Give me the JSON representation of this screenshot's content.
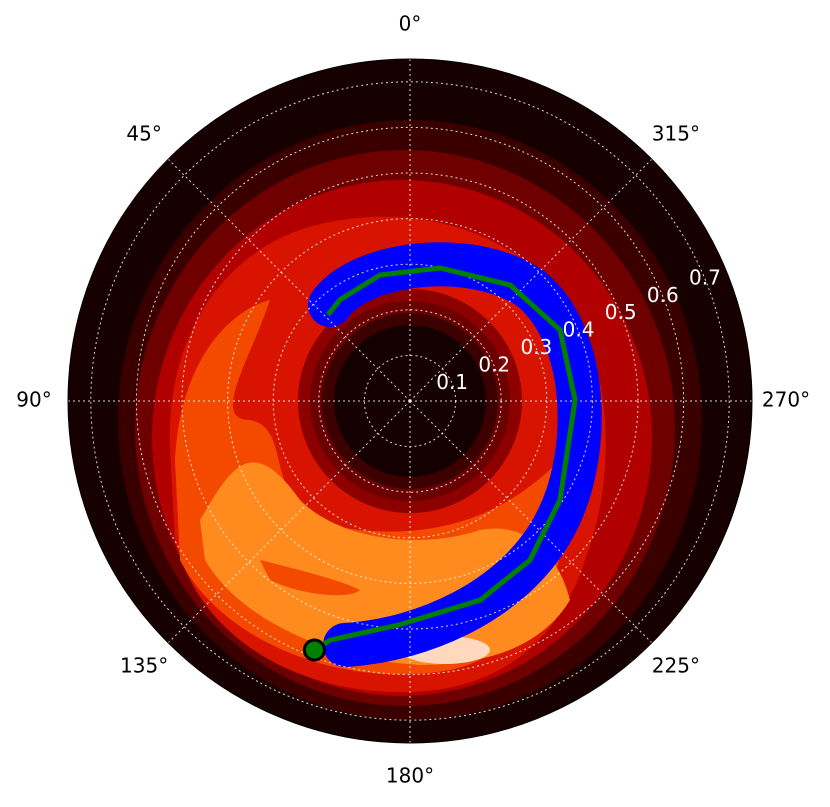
{
  "chart_data": {
    "type": "polar_line",
    "rlim": [
      0,
      0.75
    ],
    "rticks": [
      0.1,
      0.2,
      0.3,
      0.4,
      0.5,
      0.6,
      0.7
    ],
    "thetaticks": [
      {
        "value": 0,
        "label": "0°"
      },
      {
        "value": 45,
        "label": "45°"
      },
      {
        "value": 90,
        "label": "90°"
      },
      {
        "value": 135,
        "label": "135°"
      },
      {
        "value": 180,
        "label": "180°"
      },
      {
        "value": 225,
        "label": "225°"
      },
      {
        "value": 270,
        "label": "270°"
      },
      {
        "value": 315,
        "label": "315°"
      }
    ],
    "grid": true,
    "series": [
      {
        "color": "#008000",
        "theta": [
          159,
          161.5,
          177.4,
          199.4,
          217,
          236.6,
          270.3,
          295.3,
          319.2,
          347.3,
          13.4,
          34.7,
          43.6
        ],
        "r": [
          0.585,
          0.553,
          0.491,
          0.463,
          0.437,
          0.394,
          0.362,
          0.364,
          0.336,
          0.299,
          0.284,
          0.27,
          0.261
        ]
      }
    ],
    "start_marker": {
      "theta": 159,
      "r": 0.585,
      "color": "#008000"
    }
  }
}
